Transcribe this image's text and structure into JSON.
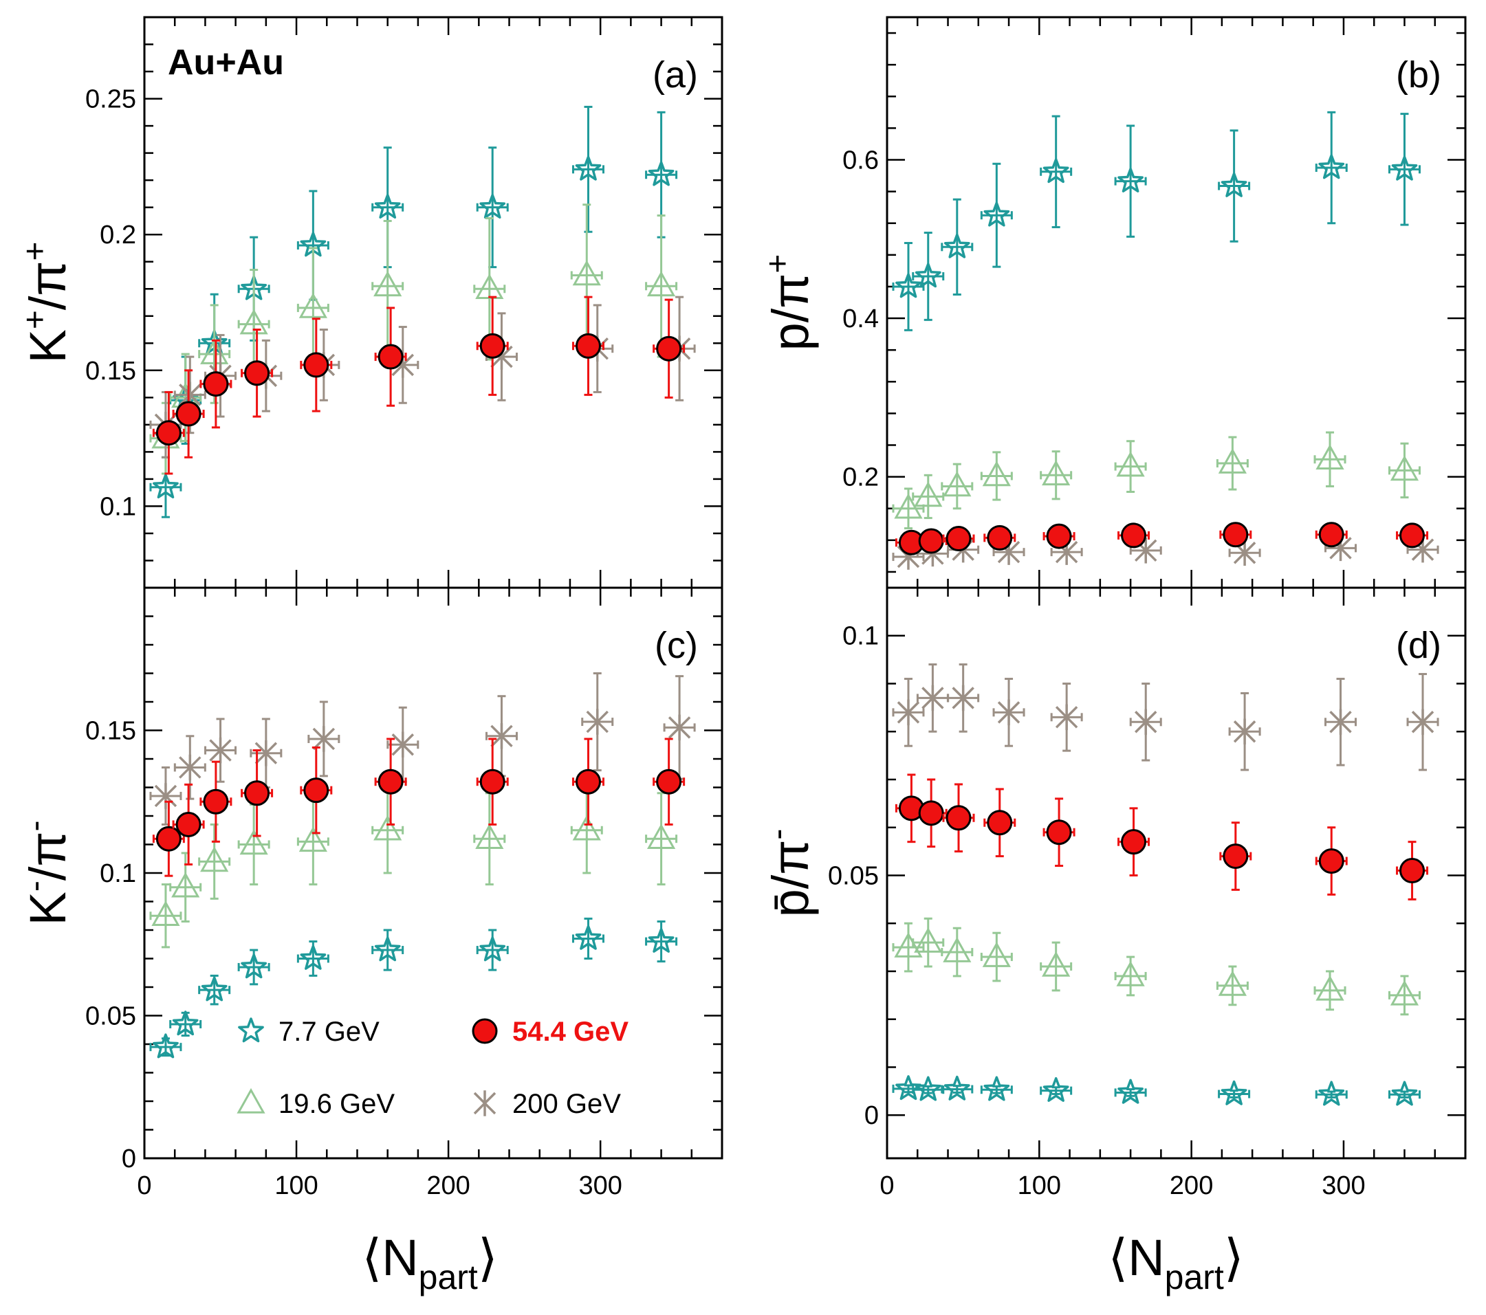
{
  "collision_label": "Au+Au",
  "x_axis_title": {
    "main": "N",
    "sub": "part"
  },
  "legend": [
    {
      "key": "e7p7",
      "label": "7.7 GeV",
      "marker": "star",
      "color": "#1f9a9a",
      "bold": false
    },
    {
      "key": "e54",
      "label": "54.4 GeV",
      "marker": "circle",
      "color": "#ee1111",
      "bold": true
    },
    {
      "key": "e19",
      "label": "19.6 GeV",
      "marker": "triangle",
      "color": "#95c895",
      "bold": false
    },
    {
      "key": "e200",
      "label": "200 GeV",
      "marker": "asterisk",
      "color": "#9b8f85",
      "bold": false
    }
  ],
  "chart_data": [
    {
      "type": "scatter",
      "panel": "(a)",
      "ylabel": "K+/π+",
      "xlim": [
        0,
        380
      ],
      "ylim": [
        0.07,
        0.28
      ],
      "xticks": [
        0,
        100,
        200,
        300
      ],
      "yticks": [
        0.1,
        0.15,
        0.2,
        0.25
      ],
      "ytick_labels": [
        "0.1",
        "0.15",
        "0.2",
        "0.25"
      ],
      "series": [
        {
          "key": "e7p7",
          "marker": "star",
          "points": [
            [
              14,
              0.107,
              0.011
            ],
            [
              27,
              0.139,
              0.016
            ],
            [
              46,
              0.16,
              0.018
            ],
            [
              72,
              0.18,
              0.019
            ],
            [
              111,
              0.196,
              0.02
            ],
            [
              160,
              0.21,
              0.022
            ],
            [
              229,
              0.21,
              0.022
            ],
            [
              292,
              0.224,
              0.023
            ],
            [
              340,
              0.222,
              0.023
            ]
          ]
        },
        {
          "key": "e19",
          "marker": "triangle",
          "points": [
            [
              14,
              0.125,
              0.013
            ],
            [
              27,
              0.14,
              0.016
            ],
            [
              46,
              0.156,
              0.018
            ],
            [
              72,
              0.167,
              0.02
            ],
            [
              111,
              0.173,
              0.022
            ],
            [
              160,
              0.181,
              0.024
            ],
            [
              227,
              0.18,
              0.026
            ],
            [
              291,
              0.185,
              0.026
            ],
            [
              340,
              0.181,
              0.026
            ]
          ]
        },
        {
          "key": "e200",
          "marker": "asterisk",
          "points": [
            [
              14,
              0.13,
              0.012
            ],
            [
              30,
              0.141,
              0.014
            ],
            [
              50,
              0.148,
              0.015
            ],
            [
              80,
              0.148,
              0.013
            ],
            [
              118,
              0.152,
              0.013
            ],
            [
              170,
              0.152,
              0.014
            ],
            [
              235,
              0.155,
              0.016
            ],
            [
              298,
              0.158,
              0.016
            ],
            [
              352,
              0.158,
              0.019
            ]
          ]
        },
        {
          "key": "e54",
          "marker": "circle",
          "points": [
            [
              16,
              0.127,
              0.015
            ],
            [
              29,
              0.134,
              0.016
            ],
            [
              47,
              0.145,
              0.016
            ],
            [
              74,
              0.149,
              0.016
            ],
            [
              113,
              0.152,
              0.017
            ],
            [
              162,
              0.155,
              0.018
            ],
            [
              229,
              0.159,
              0.018
            ],
            [
              292,
              0.159,
              0.018
            ],
            [
              345,
              0.158,
              0.018
            ]
          ]
        }
      ]
    },
    {
      "type": "scatter",
      "panel": "(b)",
      "ylabel": "p/π+",
      "xlim": [
        0,
        380
      ],
      "ylim": [
        0.06,
        0.78
      ],
      "xticks": [
        0,
        100,
        200,
        300
      ],
      "yticks": [
        0.2,
        0.4,
        0.6
      ],
      "ytick_labels": [
        "0.2",
        "0.4",
        "0.6"
      ],
      "series": [
        {
          "key": "e7p7",
          "marker": "star",
          "points": [
            [
              14,
              0.44,
              0.055
            ],
            [
              27,
              0.453,
              0.055
            ],
            [
              46,
              0.49,
              0.06
            ],
            [
              72,
              0.53,
              0.065
            ],
            [
              111,
              0.585,
              0.07
            ],
            [
              160,
              0.573,
              0.07
            ],
            [
              228,
              0.567,
              0.07
            ],
            [
              292,
              0.59,
              0.07
            ],
            [
              340,
              0.588,
              0.07
            ]
          ]
        },
        {
          "key": "e19",
          "marker": "triangle",
          "points": [
            [
              14,
              0.16,
              0.025
            ],
            [
              27,
              0.175,
              0.027
            ],
            [
              46,
              0.188,
              0.028
            ],
            [
              72,
              0.201,
              0.03
            ],
            [
              111,
              0.202,
              0.03
            ],
            [
              160,
              0.213,
              0.032
            ],
            [
              227,
              0.217,
              0.033
            ],
            [
              291,
              0.222,
              0.034
            ],
            [
              340,
              0.208,
              0.034
            ]
          ]
        },
        {
          "key": "e200",
          "marker": "asterisk",
          "points": [
            [
              14,
              0.099,
              0
            ],
            [
              30,
              0.103,
              0
            ],
            [
              50,
              0.108,
              0
            ],
            [
              80,
              0.105,
              0
            ],
            [
              118,
              0.105,
              0
            ],
            [
              170,
              0.107,
              0
            ],
            [
              235,
              0.104,
              0
            ],
            [
              298,
              0.11,
              0
            ],
            [
              352,
              0.108,
              0
            ]
          ]
        },
        {
          "key": "e54",
          "marker": "circle",
          "points": [
            [
              16,
              0.117,
              0
            ],
            [
              29,
              0.119,
              0
            ],
            [
              47,
              0.122,
              0
            ],
            [
              74,
              0.123,
              0
            ],
            [
              113,
              0.125,
              0
            ],
            [
              162,
              0.126,
              0
            ],
            [
              229,
              0.127,
              0
            ],
            [
              292,
              0.127,
              0
            ],
            [
              345,
              0.126,
              0
            ]
          ]
        }
      ]
    },
    {
      "type": "scatter",
      "panel": "(c)",
      "ylabel": "K-/π-",
      "xlim": [
        0,
        380
      ],
      "ylim": [
        0,
        0.2
      ],
      "xticks": [
        0,
        100,
        200,
        300
      ],
      "xtick_labels": [
        "0",
        "100",
        "200",
        "300"
      ],
      "yticks": [
        0,
        0.05,
        0.1,
        0.15
      ],
      "ytick_labels": [
        "0",
        "0.05",
        "0.1",
        "0.15"
      ],
      "series": [
        {
          "key": "e7p7",
          "marker": "star",
          "points": [
            [
              14,
              0.039,
              0.003
            ],
            [
              27,
              0.047,
              0.004
            ],
            [
              46,
              0.059,
              0.005
            ],
            [
              72,
              0.067,
              0.006
            ],
            [
              111,
              0.07,
              0.006
            ],
            [
              160,
              0.073,
              0.007
            ],
            [
              229,
              0.073,
              0.007
            ],
            [
              292,
              0.077,
              0.007
            ],
            [
              340,
              0.076,
              0.007
            ]
          ]
        },
        {
          "key": "e19",
          "marker": "triangle",
          "points": [
            [
              14,
              0.085,
              0.011
            ],
            [
              27,
              0.095,
              0.012
            ],
            [
              46,
              0.104,
              0.013
            ],
            [
              72,
              0.11,
              0.014
            ],
            [
              111,
              0.111,
              0.015
            ],
            [
              160,
              0.115,
              0.015
            ],
            [
              227,
              0.112,
              0.016
            ],
            [
              291,
              0.115,
              0.015
            ],
            [
              340,
              0.112,
              0.016
            ]
          ]
        },
        {
          "key": "e200",
          "marker": "asterisk",
          "points": [
            [
              14,
              0.127,
              0.01
            ],
            [
              30,
              0.137,
              0.011
            ],
            [
              50,
              0.143,
              0.011
            ],
            [
              80,
              0.142,
              0.012
            ],
            [
              118,
              0.147,
              0.013
            ],
            [
              170,
              0.145,
              0.013
            ],
            [
              235,
              0.148,
              0.014
            ],
            [
              298,
              0.153,
              0.017
            ],
            [
              352,
              0.151,
              0.018
            ]
          ]
        },
        {
          "key": "e54",
          "marker": "circle",
          "points": [
            [
              16,
              0.112,
              0.013
            ],
            [
              29,
              0.117,
              0.014
            ],
            [
              47,
              0.125,
              0.014
            ],
            [
              74,
              0.128,
              0.015
            ],
            [
              113,
              0.129,
              0.015
            ],
            [
              162,
              0.132,
              0.015
            ],
            [
              229,
              0.132,
              0.015
            ],
            [
              292,
              0.132,
              0.015
            ],
            [
              345,
              0.132,
              0.015
            ]
          ]
        }
      ]
    },
    {
      "type": "scatter",
      "panel": "(d)",
      "ylabel": "p̄/π-",
      "xlim": [
        0,
        380
      ],
      "ylim": [
        -0.009,
        0.11
      ],
      "xticks": [
        0,
        100,
        200,
        300
      ],
      "xtick_labels": [
        "0",
        "100",
        "200",
        "300"
      ],
      "yticks": [
        0,
        0.05,
        0.1
      ],
      "ytick_labels": [
        "0",
        "0.05",
        "0.1"
      ],
      "series": [
        {
          "key": "e7p7",
          "marker": "star",
          "points": [
            [
              14,
              0.0055,
              0.0007
            ],
            [
              27,
              0.0053,
              0.0007
            ],
            [
              46,
              0.0054,
              0.0007
            ],
            [
              72,
              0.0053,
              0.0007
            ],
            [
              111,
              0.0051,
              0.0007
            ],
            [
              160,
              0.0047,
              0.0007
            ],
            [
              228,
              0.0044,
              0.0007
            ],
            [
              292,
              0.0043,
              0.0006
            ],
            [
              340,
              0.0043,
              0.0006
            ]
          ]
        },
        {
          "key": "e19",
          "marker": "triangle",
          "points": [
            [
              14,
              0.035,
              0.005
            ],
            [
              27,
              0.036,
              0.005
            ],
            [
              46,
              0.034,
              0.005
            ],
            [
              72,
              0.033,
              0.005
            ],
            [
              111,
              0.031,
              0.005
            ],
            [
              160,
              0.029,
              0.004
            ],
            [
              227,
              0.027,
              0.004
            ],
            [
              291,
              0.026,
              0.004
            ],
            [
              340,
              0.025,
              0.004
            ]
          ]
        },
        {
          "key": "e200",
          "marker": "asterisk",
          "points": [
            [
              14,
              0.084,
              0.007
            ],
            [
              30,
              0.087,
              0.007
            ],
            [
              50,
              0.087,
              0.007
            ],
            [
              80,
              0.084,
              0.007
            ],
            [
              118,
              0.083,
              0.007
            ],
            [
              170,
              0.082,
              0.008
            ],
            [
              235,
              0.08,
              0.008
            ],
            [
              298,
              0.082,
              0.009
            ],
            [
              352,
              0.082,
              0.01
            ]
          ]
        },
        {
          "key": "e54",
          "marker": "circle",
          "points": [
            [
              16,
              0.064,
              0.007
            ],
            [
              29,
              0.063,
              0.007
            ],
            [
              47,
              0.062,
              0.007
            ],
            [
              74,
              0.061,
              0.007
            ],
            [
              113,
              0.059,
              0.007
            ],
            [
              162,
              0.057,
              0.007
            ],
            [
              229,
              0.054,
              0.007
            ],
            [
              292,
              0.053,
              0.007
            ],
            [
              345,
              0.051,
              0.006
            ]
          ]
        }
      ]
    }
  ]
}
